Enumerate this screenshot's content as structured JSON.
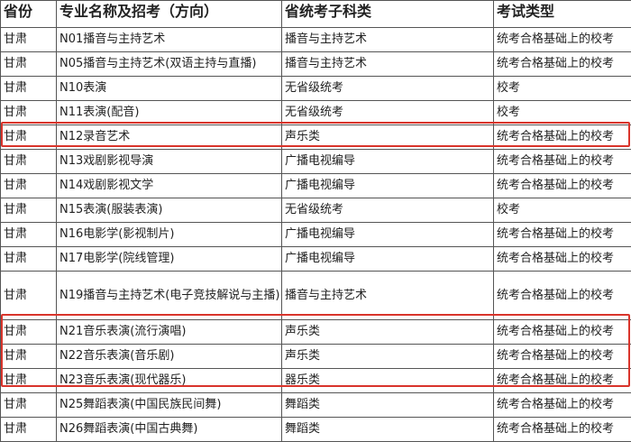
{
  "headers": [
    "省份",
    "专业名称及招考（方向）",
    "省统考子科类",
    "考试类型"
  ],
  "rows": [
    [
      "甘肃",
      "N01播音与主持艺术",
      "播音与主持艺术",
      "统考合格基础上的校考"
    ],
    [
      "甘肃",
      "N05播音与主持艺术(双语主持与直播)",
      "播音与主持艺术",
      "统考合格基础上的校考"
    ],
    [
      "甘肃",
      "N10表演",
      "无省级统考",
      "校考"
    ],
    [
      "甘肃",
      "N11表演(配音)",
      "无省级统考",
      "校考"
    ],
    [
      "甘肃",
      "N12录音艺术",
      "声乐类",
      "统考合格基础上的校考"
    ],
    [
      "甘肃",
      "N13戏剧影视导演",
      "广播电视编导",
      "统考合格基础上的校考"
    ],
    [
      "甘肃",
      "N14戏剧影视文学",
      "广播电视编导",
      "统考合格基础上的校考"
    ],
    [
      "甘肃",
      "N15表演(服装表演)",
      "无省级统考",
      "校考"
    ],
    [
      "甘肃",
      "N16电影学(影视制片)",
      "广播电视编导",
      "统考合格基础上的校考"
    ],
    [
      "甘肃",
      "N17电影学(院线管理)",
      "广播电视编导",
      "统考合格基础上的校考"
    ],
    [
      "甘肃",
      "N19播音与主持艺术(电子竞技解说与主播)",
      "播音与主持艺术",
      "统考合格基础上的校考"
    ],
    [
      "甘肃",
      "N21音乐表演(流行演唱)",
      "声乐类",
      "统考合格基础上的校考"
    ],
    [
      "甘肃",
      "N22音乐表演(音乐剧)",
      "声乐类",
      "统考合格基础上的校考"
    ],
    [
      "甘肃",
      "N23音乐表演(现代器乐)",
      "器乐类",
      "统考合格基础上的校考"
    ],
    [
      "甘肃",
      "N25舞蹈表演(中国民族民间舞)",
      "舞蹈类",
      "统考合格基础上的校考"
    ],
    [
      "甘肃",
      "N26舞蹈表演(中国古典舞)",
      "舞蹈类",
      "统考合格基础上的校考"
    ]
  ],
  "highlight_color": "#d9342b"
}
